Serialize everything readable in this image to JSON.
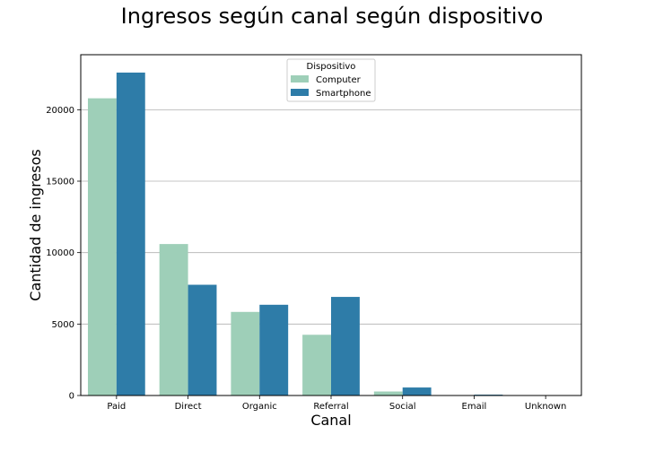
{
  "chart_data": {
    "type": "bar",
    "title": "Ingresos según canal según dispositivo",
    "xlabel": "Canal",
    "ylabel": "Cantidad de ingresos",
    "categories": [
      "Paid",
      "Direct",
      "Organic",
      "Referral",
      "Social",
      "Email",
      "Unknown"
    ],
    "series": [
      {
        "name": "Computer",
        "color": "#9ecfb8",
        "values": [
          20800,
          10600,
          5850,
          4250,
          280,
          0,
          0
        ]
      },
      {
        "name": "Smartphone",
        "color": "#2e7ca8",
        "values": [
          22600,
          7750,
          6350,
          6900,
          560,
          60,
          0
        ]
      }
    ],
    "ylim": [
      0,
      23850
    ],
    "yticks": [
      0,
      5000,
      10000,
      15000,
      20000
    ],
    "grid": {
      "y": true,
      "x": false
    },
    "legend": {
      "title": "Dispositivo",
      "placement": "top-center"
    }
  }
}
